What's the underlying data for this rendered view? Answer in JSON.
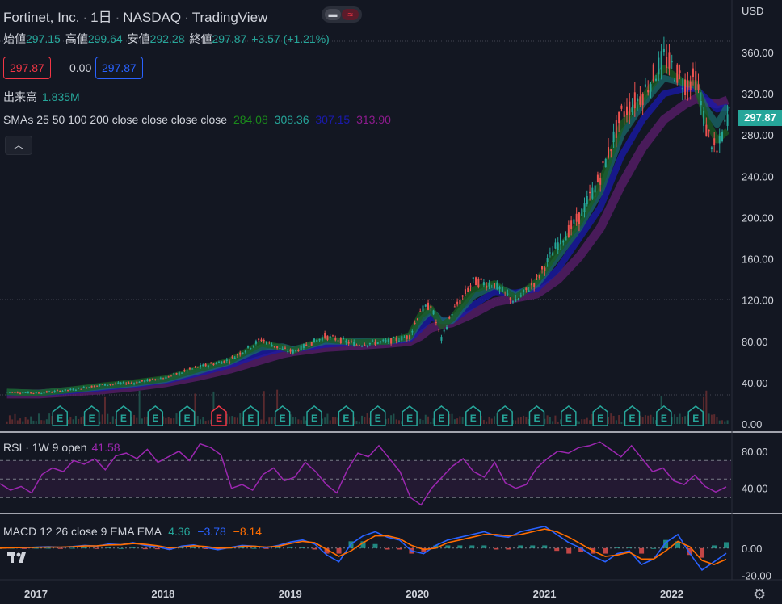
{
  "header": {
    "symbol": "Fortinet, Inc.",
    "interval": "1日",
    "exchange": "NASDAQ",
    "source": "TradingView",
    "separator": "·"
  },
  "ohlc": {
    "open_label": "始値",
    "open": "297.15",
    "high_label": "高値",
    "high": "299.64",
    "low_label": "安値",
    "low": "292.28",
    "close_label": "終値",
    "close": "297.87",
    "change": "+3.57 (+1.21%)"
  },
  "price_boxes": {
    "sell": "297.87",
    "spread": "0.00",
    "buy": "297.87"
  },
  "volume": {
    "label": "出来高",
    "value": "1.835M"
  },
  "sma": {
    "label": "SMAs 25 50 100 200 close close close close",
    "values": [
      "284.08",
      "308.36",
      "307.15",
      "313.90"
    ],
    "colors": [
      "#1b8a1b",
      "#26a69a",
      "#1a1aad",
      "#8e1b8e"
    ]
  },
  "rsi": {
    "label": "RSI · 1W 9 open",
    "value": "41.58"
  },
  "macd": {
    "label": "MACD 12 26 close 9 EMA EMA",
    "values": [
      "4.36",
      "−3.78",
      "−8.14"
    ],
    "colors": [
      "#26a69a",
      "#2962ff",
      "#ff6d00"
    ]
  },
  "axis": {
    "currency": "USD",
    "current_price": "297.87"
  },
  "earnings_marker": "E",
  "colors": {
    "up": "#26a69a",
    "down": "#ef5350",
    "background": "#131722",
    "rsi_line": "#9c27b0"
  },
  "chart_data": [
    {
      "type": "line",
      "name": "price",
      "x": [
        "2017",
        "2018",
        "2019",
        "2020",
        "2021",
        "2022"
      ],
      "y_ticks": [
        "0.00",
        "40.00",
        "80.00",
        "120.00",
        "160.00",
        "200.00",
        "240.00",
        "280.00",
        "320.00",
        "360.00"
      ],
      "ylim": [
        0,
        375
      ],
      "points": [
        [
          "2016-10",
          31
        ],
        [
          "2017-01",
          30
        ],
        [
          "2017-04",
          33
        ],
        [
          "2017-07",
          38
        ],
        [
          "2017-10",
          40
        ],
        [
          "2018-01",
          45
        ],
        [
          "2018-04",
          55
        ],
        [
          "2018-07",
          62
        ],
        [
          "2018-10",
          82
        ],
        [
          "2018-12",
          72
        ],
        [
          "2019-01",
          70
        ],
        [
          "2019-04",
          85
        ],
        [
          "2019-07",
          77
        ],
        [
          "2019-10",
          80
        ],
        [
          "2019-12",
          85
        ],
        [
          "2020-01",
          110
        ],
        [
          "2020-02",
          115
        ],
        [
          "2020-03",
          82
        ],
        [
          "2020-04",
          108
        ],
        [
          "2020-06",
          138
        ],
        [
          "2020-08",
          135
        ],
        [
          "2020-10",
          118
        ],
        [
          "2020-12",
          140
        ],
        [
          "2021-02",
          175
        ],
        [
          "2021-04",
          200
        ],
        [
          "2021-06",
          240
        ],
        [
          "2021-08",
          300
        ],
        [
          "2021-10",
          320
        ],
        [
          "2021-12",
          355
        ],
        [
          "2022-02",
          330
        ],
        [
          "2022-03",
          335
        ],
        [
          "2022-04",
          285
        ],
        [
          "2022-05",
          262
        ],
        [
          "2022-06",
          297.87
        ]
      ],
      "sma": [
        {
          "label": "SMA 25",
          "values": [
            31,
            30,
            33,
            37,
            40,
            44,
            53,
            61,
            78,
            74,
            71,
            82,
            79,
            80,
            85,
            105,
            112,
            95,
            102,
            130,
            136,
            122,
            138,
            168,
            195,
            232,
            290,
            315,
            345,
            330,
            330,
            295,
            275,
            284.08
          ]
        },
        {
          "label": "SMA 50",
          "values": [
            31,
            30,
            33,
            36,
            39,
            43,
            51,
            60,
            74,
            75,
            72,
            80,
            80,
            80,
            84,
            100,
            110,
            100,
            100,
            124,
            134,
            125,
            135,
            162,
            190,
            225,
            280,
            310,
            335,
            330,
            328,
            305,
            290,
            308.36
          ]
        },
        {
          "label": "SMA 100",
          "values": [
            30,
            30,
            32,
            35,
            38,
            42,
            49,
            57,
            68,
            73,
            72,
            77,
            79,
            80,
            82,
            92,
            103,
            100,
            100,
            115,
            128,
            127,
            131,
            150,
            180,
            210,
            260,
            295,
            320,
            325,
            325,
            315,
            305,
            307.15
          ]
        },
        {
          "label": "SMA 200",
          "values": [
            29,
            29,
            31,
            33,
            36,
            40,
            46,
            53,
            62,
            68,
            70,
            74,
            76,
            78,
            80,
            85,
            93,
            96,
            98,
            107,
            118,
            122,
            126,
            140,
            162,
            190,
            232,
            268,
            295,
            310,
            315,
            312,
            310,
            313.9
          ]
        }
      ],
      "earnings_count": 23
    },
    {
      "type": "line",
      "name": "RSI",
      "y_ticks": [
        "80.00",
        "40.00"
      ],
      "ylim": [
        18,
        92
      ],
      "bands": [
        70,
        50,
        30
      ],
      "values": [
        45,
        38,
        42,
        35,
        55,
        62,
        58,
        70,
        66,
        72,
        60,
        75,
        78,
        72,
        82,
        68,
        74,
        80,
        70,
        88,
        84,
        76,
        40,
        44,
        38,
        55,
        62,
        48,
        52,
        68,
        58,
        44,
        35,
        60,
        78,
        74,
        86,
        72,
        58,
        30,
        22,
        40,
        52,
        64,
        72,
        58,
        52,
        68,
        46,
        40,
        44,
        62,
        72,
        80,
        78,
        84,
        86,
        90,
        82,
        74,
        86,
        72,
        58,
        62,
        48,
        44,
        54,
        42,
        36,
        41.58
      ],
      "current": 41.58
    },
    {
      "type": "line",
      "name": "MACD",
      "y_ticks": [
        "0.00",
        "-20.00"
      ],
      "ylim": [
        -22,
        20
      ],
      "macd": [
        0,
        0.5,
        0.3,
        0.8,
        1,
        0.6,
        1.2,
        2,
        1.5,
        3,
        2.5,
        4,
        2,
        1,
        -1,
        1.5,
        2.4,
        0.5,
        -1.2,
        0.5,
        2,
        1.5,
        0.3,
        2,
        4.5,
        6,
        3,
        -5,
        -10,
        3,
        9,
        12,
        8,
        6,
        -2,
        -4,
        2,
        6,
        8,
        10,
        12,
        9,
        8,
        12,
        14,
        16,
        10,
        4,
        0,
        -6,
        -10,
        -4,
        -2,
        -12,
        -8,
        4,
        10,
        -4,
        -16,
        -10,
        -3.78
      ],
      "signal": [
        0,
        0.3,
        0.4,
        0.6,
        0.8,
        0.7,
        1,
        1.6,
        1.7,
        2.4,
        2.5,
        3.4,
        2.8,
        1.8,
        0.2,
        0.8,
        1.8,
        1.2,
        0,
        0.2,
        1.3,
        1.4,
        0.8,
        1.4,
        3.4,
        5,
        4,
        -1,
        -6,
        -2,
        4,
        9,
        9,
        7,
        2,
        -1,
        0,
        4,
        6,
        8,
        10,
        10,
        9,
        10,
        12,
        14,
        12,
        8,
        3,
        -2,
        -6,
        -5,
        -3,
        -8,
        -8,
        -2,
        5,
        1,
        -9,
        -12,
        -8.14
      ],
      "current": [
        4.36,
        -3.78,
        -8.14
      ]
    }
  ]
}
